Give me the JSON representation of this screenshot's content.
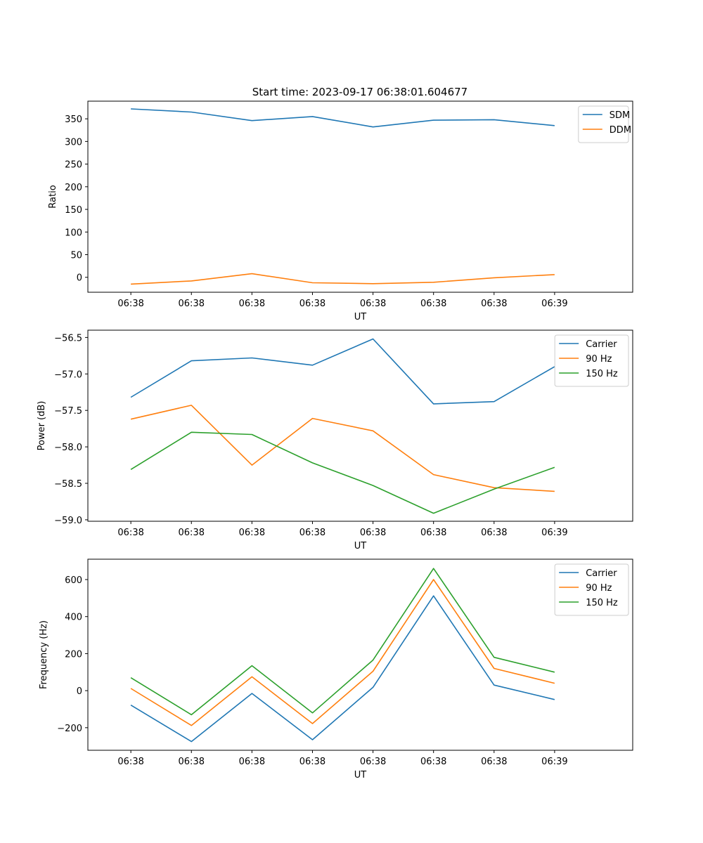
{
  "figure_title": "Start time: 2023-09-17 06:38:01.604677",
  "colors": {
    "blue": "#1f77b4",
    "orange": "#ff7f0e",
    "green": "#2ca02c"
  },
  "chart_data": [
    {
      "type": "line",
      "title": "Start time: 2023-09-17 06:38:01.604677",
      "xlabel": "UT",
      "ylabel": "Ratio",
      "x_ticks": [
        "06:38",
        "06:38",
        "06:38",
        "06:38",
        "06:38",
        "06:38",
        "06:38",
        "06:39"
      ],
      "x": [
        1,
        2,
        3,
        4,
        5,
        6,
        7,
        8
      ],
      "xlim": [
        0.29,
        9.29
      ],
      "ylim": [
        -33,
        389
      ],
      "y_ticks": [
        0,
        50,
        100,
        150,
        200,
        250,
        300,
        350
      ],
      "y_tick_labels": [
        "0",
        "50",
        "100",
        "150",
        "200",
        "250",
        "300",
        "350"
      ],
      "legend_position": "top-right",
      "series": [
        {
          "name": "SDM",
          "color": "#1f77b4",
          "values": [
            372,
            365,
            346,
            355,
            332,
            347,
            348,
            335
          ]
        },
        {
          "name": "DDM",
          "color": "#ff7f0e",
          "values": [
            -15,
            -8,
            8,
            -12,
            -14,
            -11,
            -1,
            6
          ]
        }
      ]
    },
    {
      "type": "line",
      "xlabel": "UT",
      "ylabel": "Power (dB)",
      "x_ticks": [
        "06:38",
        "06:38",
        "06:38",
        "06:38",
        "06:38",
        "06:38",
        "06:38",
        "06:39"
      ],
      "x": [
        1,
        2,
        3,
        4,
        5,
        6,
        7,
        8
      ],
      "xlim": [
        0.29,
        9.29
      ],
      "ylim": [
        -59.02,
        -56.4
      ],
      "y_ticks": [
        -59.0,
        -58.5,
        -58.0,
        -57.5,
        -57.0,
        -56.5
      ],
      "y_tick_labels": [
        "−59.0",
        "−58.5",
        "−58.0",
        "−57.5",
        "−57.0",
        "−56.5"
      ],
      "legend_position": "top-right",
      "series": [
        {
          "name": "Carrier",
          "color": "#1f77b4",
          "values": [
            -57.32,
            -56.82,
            -56.78,
            -56.88,
            -56.52,
            -57.41,
            -57.38,
            -56.9
          ]
        },
        {
          "name": "90 Hz",
          "color": "#ff7f0e",
          "values": [
            -57.62,
            -57.43,
            -58.25,
            -57.61,
            -57.78,
            -58.38,
            -58.56,
            -58.61
          ]
        },
        {
          "name": "150 Hz",
          "color": "#2ca02c",
          "values": [
            -58.31,
            -57.8,
            -57.83,
            -58.22,
            -58.53,
            -58.91,
            -58.58,
            -58.28
          ]
        }
      ]
    },
    {
      "type": "line",
      "xlabel": "UT",
      "ylabel": "Frequency (Hz)",
      "x_ticks": [
        "06:38",
        "06:38",
        "06:38",
        "06:38",
        "06:38",
        "06:38",
        "06:38",
        "06:39"
      ],
      "x": [
        1,
        2,
        3,
        4,
        5,
        6,
        7,
        8
      ],
      "xlim": [
        0.29,
        9.29
      ],
      "ylim": [
        -322,
        710
      ],
      "y_ticks": [
        -200,
        0,
        200,
        400,
        600
      ],
      "y_tick_labels": [
        "−200",
        "0",
        "200",
        "400",
        "600"
      ],
      "legend_position": "top-right",
      "series": [
        {
          "name": "Carrier",
          "color": "#1f77b4",
          "values": [
            -78,
            -275,
            -15,
            -265,
            18,
            512,
            30,
            -48
          ]
        },
        {
          "name": "90 Hz",
          "color": "#ff7f0e",
          "values": [
            12,
            -188,
            75,
            -178,
            105,
            600,
            120,
            40
          ]
        },
        {
          "name": "150 Hz",
          "color": "#2ca02c",
          "values": [
            70,
            -130,
            135,
            -120,
            165,
            660,
            180,
            100
          ]
        }
      ]
    }
  ]
}
